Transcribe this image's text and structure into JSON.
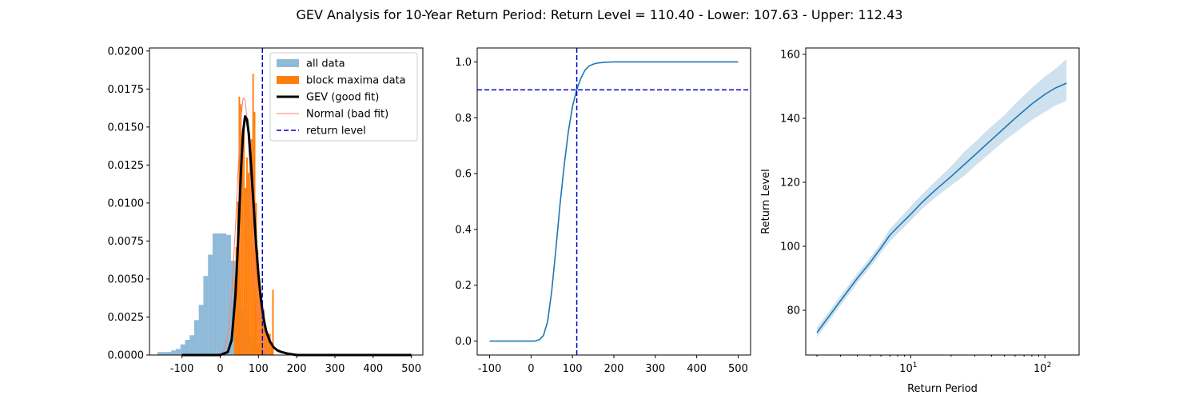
{
  "figure": {
    "title": "GEV Analysis for 10-Year Return Period: Return Level = 110.40 - Lower: 107.63 - Upper: 112.43"
  },
  "colors": {
    "all_data": "#1f77b4",
    "block_maxima": "#ff7f0e",
    "gev_fit": "#000000",
    "normal_fit": "#fa8072",
    "return_level": "#0000cd",
    "cdf_line": "#1f77b4",
    "return_curve": "#1f77b4"
  },
  "chart_data": [
    {
      "type": "bar",
      "subtype": "histogram",
      "title": "",
      "xlabel": "",
      "ylabel": "",
      "xlim": [
        -185,
        530
      ],
      "ylim": [
        0,
        0.0202
      ],
      "x_ticks": [
        -100,
        0,
        100,
        200,
        300,
        400,
        500
      ],
      "y_ticks": [
        0.0,
        0.0025,
        0.005,
        0.0075,
        0.01,
        0.0125,
        0.015,
        0.0175,
        0.02
      ],
      "y_tick_labels": [
        "0.0000",
        "0.0025",
        "0.0050",
        "0.0075",
        "0.0100",
        "0.0125",
        "0.0150",
        "0.0175",
        "0.0200"
      ],
      "legend": {
        "position": "upper right",
        "entries": [
          "all data",
          "block maxima data",
          "GEV (good fit)",
          "Normal (bad fit)",
          "return level"
        ]
      },
      "series": [
        {
          "name": "all data",
          "kind": "histogram",
          "bins": [
            {
              "x0": -164,
              "x1": -152,
              "h": 0.0002
            },
            {
              "x0": -152,
              "x1": -140,
              "h": 0.0002
            },
            {
              "x0": -140,
              "x1": -128,
              "h": 0.0002
            },
            {
              "x0": -128,
              "x1": -116,
              "h": 0.0003
            },
            {
              "x0": -116,
              "x1": -104,
              "h": 0.0004
            },
            {
              "x0": -104,
              "x1": -92,
              "h": 0.0007
            },
            {
              "x0": -92,
              "x1": -80,
              "h": 0.001
            },
            {
              "x0": -80,
              "x1": -68,
              "h": 0.0013
            },
            {
              "x0": -68,
              "x1": -56,
              "h": 0.0023
            },
            {
              "x0": -56,
              "x1": -44,
              "h": 0.0033
            },
            {
              "x0": -44,
              "x1": -32,
              "h": 0.0052
            },
            {
              "x0": -32,
              "x1": -20,
              "h": 0.0066
            },
            {
              "x0": -20,
              "x1": -8,
              "h": 0.008
            },
            {
              "x0": -8,
              "x1": 4,
              "h": 0.008
            },
            {
              "x0": 4,
              "x1": 16,
              "h": 0.008
            },
            {
              "x0": 16,
              "x1": 28,
              "h": 0.0079
            },
            {
              "x0": 28,
              "x1": 40,
              "h": 0.0062
            },
            {
              "x0": 40,
              "x1": 52,
              "h": 0.0045
            },
            {
              "x0": 52,
              "x1": 64,
              "h": 0.003
            },
            {
              "x0": 64,
              "x1": 76,
              "h": 0.002
            },
            {
              "x0": 76,
              "x1": 88,
              "h": 0.0012
            },
            {
              "x0": 88,
              "x1": 100,
              "h": 0.0007
            },
            {
              "x0": 100,
              "x1": 112,
              "h": 0.0004
            },
            {
              "x0": 112,
              "x1": 124,
              "h": 0.0003
            },
            {
              "x0": 124,
              "x1": 136,
              "h": 0.0002
            }
          ]
        },
        {
          "name": "block maxima data",
          "kind": "histogram",
          "bins": [
            {
              "x0": 36,
              "x1": 40,
              "h": 0.005
            },
            {
              "x0": 40,
              "x1": 44,
              "h": 0.0071
            },
            {
              "x0": 44,
              "x1": 48,
              "h": 0.0101
            },
            {
              "x0": 48,
              "x1": 52,
              "h": 0.017
            },
            {
              "x0": 52,
              "x1": 56,
              "h": 0.0165
            },
            {
              "x0": 56,
              "x1": 60,
              "h": 0.014
            },
            {
              "x0": 60,
              "x1": 64,
              "h": 0.015
            },
            {
              "x0": 64,
              "x1": 68,
              "h": 0.011
            },
            {
              "x0": 68,
              "x1": 72,
              "h": 0.013
            },
            {
              "x0": 72,
              "x1": 76,
              "h": 0.012
            },
            {
              "x0": 76,
              "x1": 80,
              "h": 0.0131
            },
            {
              "x0": 80,
              "x1": 84,
              "h": 0.0142
            },
            {
              "x0": 84,
              "x1": 88,
              "h": 0.0185
            },
            {
              "x0": 88,
              "x1": 92,
              "h": 0.016
            },
            {
              "x0": 92,
              "x1": 96,
              "h": 0.01
            },
            {
              "x0": 96,
              "x1": 100,
              "h": 0.0069
            },
            {
              "x0": 100,
              "x1": 104,
              "h": 0.005
            },
            {
              "x0": 104,
              "x1": 108,
              "h": 0.004
            },
            {
              "x0": 108,
              "x1": 112,
              "h": 0.0035
            },
            {
              "x0": 112,
              "x1": 116,
              "h": 0.003
            },
            {
              "x0": 116,
              "x1": 120,
              "h": 0.002
            },
            {
              "x0": 120,
              "x1": 124,
              "h": 0.0014
            },
            {
              "x0": 124,
              "x1": 128,
              "h": 0.0014
            },
            {
              "x0": 128,
              "x1": 132,
              "h": 0.0014
            },
            {
              "x0": 132,
              "x1": 136,
              "h": 0.0008
            },
            {
              "x0": 136,
              "x1": 140,
              "h": 0.0043
            }
          ]
        },
        {
          "name": "GEV (good fit)",
          "kind": "line",
          "x": [
            -100,
            0,
            20,
            30,
            40,
            45,
            50,
            55,
            60,
            65,
            70,
            75,
            80,
            85,
            90,
            95,
            100,
            105,
            110,
            115,
            120,
            130,
            140,
            150,
            160,
            175,
            200,
            300,
            400,
            500
          ],
          "y": [
            0.0,
            0.0,
            0.0002,
            0.001,
            0.004,
            0.0065,
            0.0095,
            0.0125,
            0.0147,
            0.0157,
            0.0155,
            0.0145,
            0.0128,
            0.0108,
            0.0088,
            0.0069,
            0.0053,
            0.004,
            0.003,
            0.0022,
            0.0016,
            0.0009,
            0.0005,
            0.0003,
            0.0002,
            0.0001,
            0.0,
            0.0,
            0.0,
            0.0
          ]
        },
        {
          "name": "Normal (bad fit)",
          "kind": "line",
          "x": [
            -100,
            0,
            10,
            20,
            30,
            40,
            45,
            50,
            55,
            60,
            65,
            70,
            75,
            80,
            85,
            90,
            95,
            100,
            110,
            120,
            130,
            140,
            150,
            175,
            200,
            300,
            400,
            500
          ],
          "y": [
            0.0,
            0.0,
            0.0003,
            0.0013,
            0.004,
            0.0085,
            0.0112,
            0.0138,
            0.0158,
            0.0169,
            0.0168,
            0.0156,
            0.0135,
            0.0109,
            0.0082,
            0.0057,
            0.0037,
            0.0022,
            0.0007,
            0.0002,
            0.0,
            0.0,
            0.0,
            0.0,
            0.0,
            0.0,
            0.0,
            0.0
          ]
        },
        {
          "name": "return level",
          "kind": "vline",
          "x": 110.4
        }
      ]
    },
    {
      "type": "line",
      "title": "",
      "xlabel": "",
      "ylabel": "",
      "xlim": [
        -130,
        530
      ],
      "ylim": [
        -0.05,
        1.05
      ],
      "x_ticks": [
        -100,
        0,
        100,
        200,
        300,
        400,
        500
      ],
      "y_ticks": [
        0.0,
        0.2,
        0.4,
        0.6,
        0.8,
        1.0
      ],
      "y_tick_labels": [
        "0.0",
        "0.2",
        "0.4",
        "0.6",
        "0.8",
        "1.0"
      ],
      "series": [
        {
          "name": "",
          "kind": "line",
          "x": [
            -100,
            0,
            10,
            20,
            30,
            40,
            50,
            60,
            70,
            80,
            90,
            100,
            110,
            120,
            130,
            140,
            150,
            160,
            180,
            200,
            300,
            400,
            500
          ],
          "y": [
            0.0,
            0.0,
            0.0,
            0.005,
            0.02,
            0.07,
            0.18,
            0.33,
            0.49,
            0.63,
            0.75,
            0.84,
            0.9,
            0.94,
            0.97,
            0.985,
            0.992,
            0.996,
            0.999,
            1.0,
            1.0,
            1.0,
            1.0
          ]
        },
        {
          "name": "",
          "kind": "vline",
          "x": 110.4
        },
        {
          "name": "",
          "kind": "hline",
          "y": 0.9
        }
      ]
    },
    {
      "type": "line",
      "title": "",
      "xlabel": "Return Period",
      "ylabel": "Return Level",
      "xscale": "log",
      "xlim": [
        1.65,
        180
      ],
      "ylim": [
        66,
        162
      ],
      "x_ticks": [
        10,
        100
      ],
      "x_tick_labels": [
        {
          "base": "10",
          "exp": "1"
        },
        {
          "base": "10",
          "exp": "2"
        }
      ],
      "y_ticks": [
        80,
        100,
        120,
        140,
        160
      ],
      "y_tick_labels": [
        "80",
        "100",
        "120",
        "140",
        "160"
      ],
      "series": [
        {
          "name": "",
          "kind": "line",
          "x": [
            2,
            3,
            4,
            5,
            6,
            7,
            8,
            10,
            12,
            15,
            20,
            25,
            30,
            40,
            50,
            60,
            80,
            100,
            120,
            145
          ],
          "y": [
            73,
            83,
            90,
            95,
            99.5,
            103.5,
            106,
            110,
            113.5,
            117.3,
            121.8,
            125.5,
            128.5,
            133.3,
            137,
            140,
            144.5,
            147.5,
            149.5,
            151
          ]
        },
        {
          "name": "",
          "kind": "band",
          "x": [
            2,
            3,
            4,
            5,
            6,
            7,
            8,
            10,
            12,
            15,
            20,
            25,
            30,
            40,
            50,
            60,
            80,
            100,
            120,
            145
          ],
          "lower": [
            71.5,
            81.5,
            88.5,
            93.5,
            98,
            101.5,
            104,
            108,
            111.5,
            115,
            119,
            122,
            125,
            129.5,
            133,
            135.5,
            139.5,
            142,
            144,
            145.5
          ],
          "upper": [
            74.5,
            84.5,
            91.5,
            96.5,
            101,
            105.5,
            108,
            112.5,
            116,
            120,
            125,
            129.5,
            132.5,
            137.5,
            141,
            144.5,
            149.5,
            153,
            155.5,
            158.5
          ]
        }
      ]
    }
  ]
}
